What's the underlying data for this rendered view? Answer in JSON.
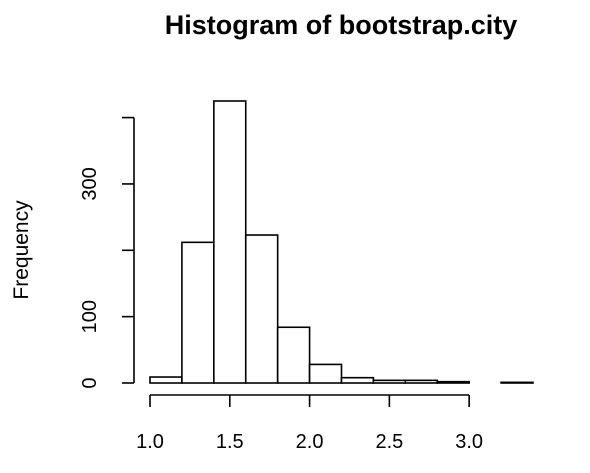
{
  "chart_data": {
    "type": "bar",
    "title": "Histogram of bootstrap.city",
    "xlabel": "",
    "ylabel": "Frequency",
    "bins": [
      {
        "x0": 1.0,
        "x1": 1.2,
        "count": 9
      },
      {
        "x0": 1.2,
        "x1": 1.4,
        "count": 212
      },
      {
        "x0": 1.4,
        "x1": 1.6,
        "count": 425
      },
      {
        "x0": 1.6,
        "x1": 1.8,
        "count": 223
      },
      {
        "x0": 1.8,
        "x1": 2.0,
        "count": 84
      },
      {
        "x0": 2.0,
        "x1": 2.2,
        "count": 28
      },
      {
        "x0": 2.2,
        "x1": 2.4,
        "count": 8
      },
      {
        "x0": 2.4,
        "x1": 2.6,
        "count": 4
      },
      {
        "x0": 2.6,
        "x1": 2.8,
        "count": 4
      },
      {
        "x0": 2.8,
        "x1": 3.0,
        "count": 2
      },
      {
        "x0": 3.0,
        "x1": 3.2,
        "count": 0
      },
      {
        "x0": 3.2,
        "x1": 3.4,
        "count": 1
      }
    ],
    "x_ticks": [
      1.0,
      1.5,
      2.0,
      2.5,
      3.0
    ],
    "x_tick_labels": [
      "1.0",
      "1.5",
      "2.0",
      "2.5",
      "3.0"
    ],
    "y_ticks": [
      0,
      100,
      200,
      300,
      400
    ],
    "y_tick_labels": [
      "0",
      "100",
      "",
      "300",
      ""
    ],
    "xlim": [
      1.0,
      3.4
    ],
    "ylim": [
      0,
      425
    ],
    "grid": false,
    "legend": "none",
    "bar_color": "#ffffff",
    "edge_color": "#000000"
  }
}
